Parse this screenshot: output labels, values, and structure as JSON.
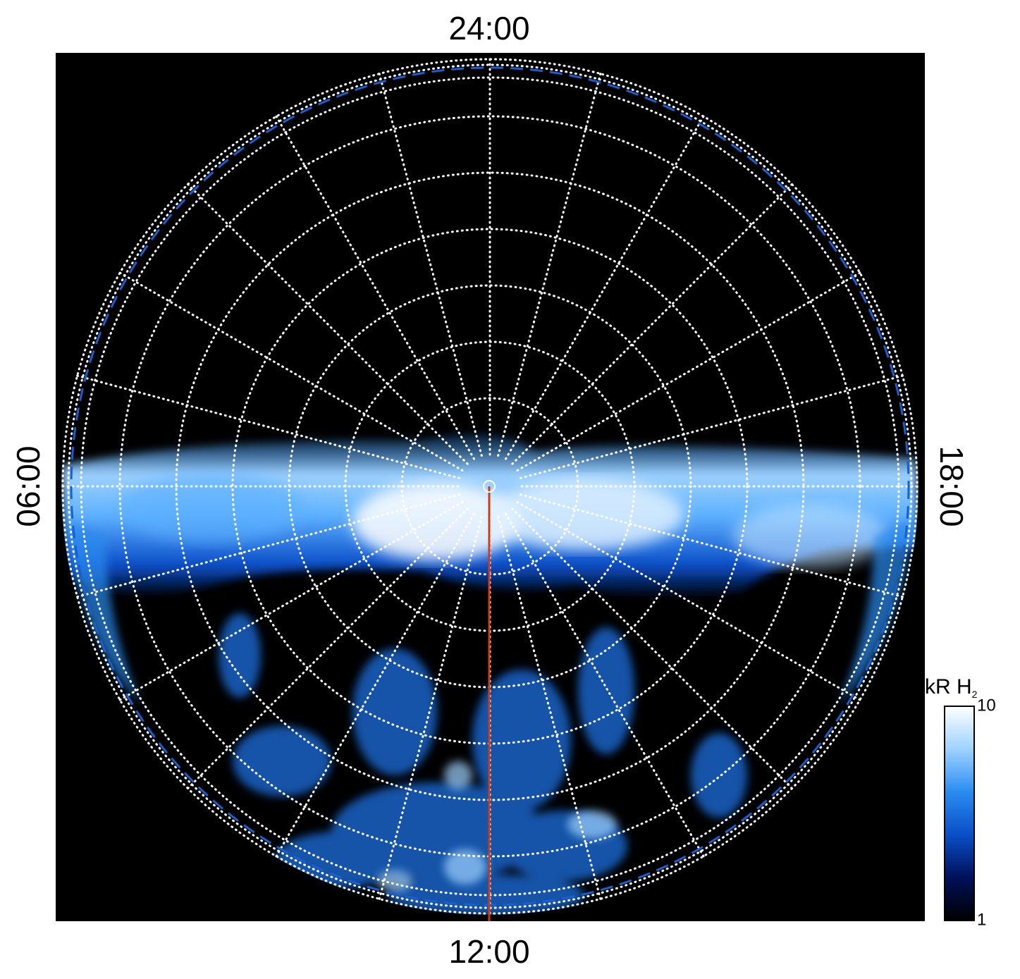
{
  "chart_data": {
    "type": "polar-image",
    "local_time_labels": {
      "top": "24:00",
      "bottom": "12:00",
      "left": "06:00",
      "right": "18:00"
    },
    "grid": true,
    "colorbar": {
      "label": "kR H",
      "label_subscript": "2",
      "lim": [
        1,
        10
      ],
      "ticks": [
        1,
        10
      ],
      "log": true,
      "colors": [
        "#000000",
        "#00105a",
        "#0a4ec8",
        "#2a8cf0",
        "#9fd2ff",
        "#ffffff"
      ]
    }
  }
}
